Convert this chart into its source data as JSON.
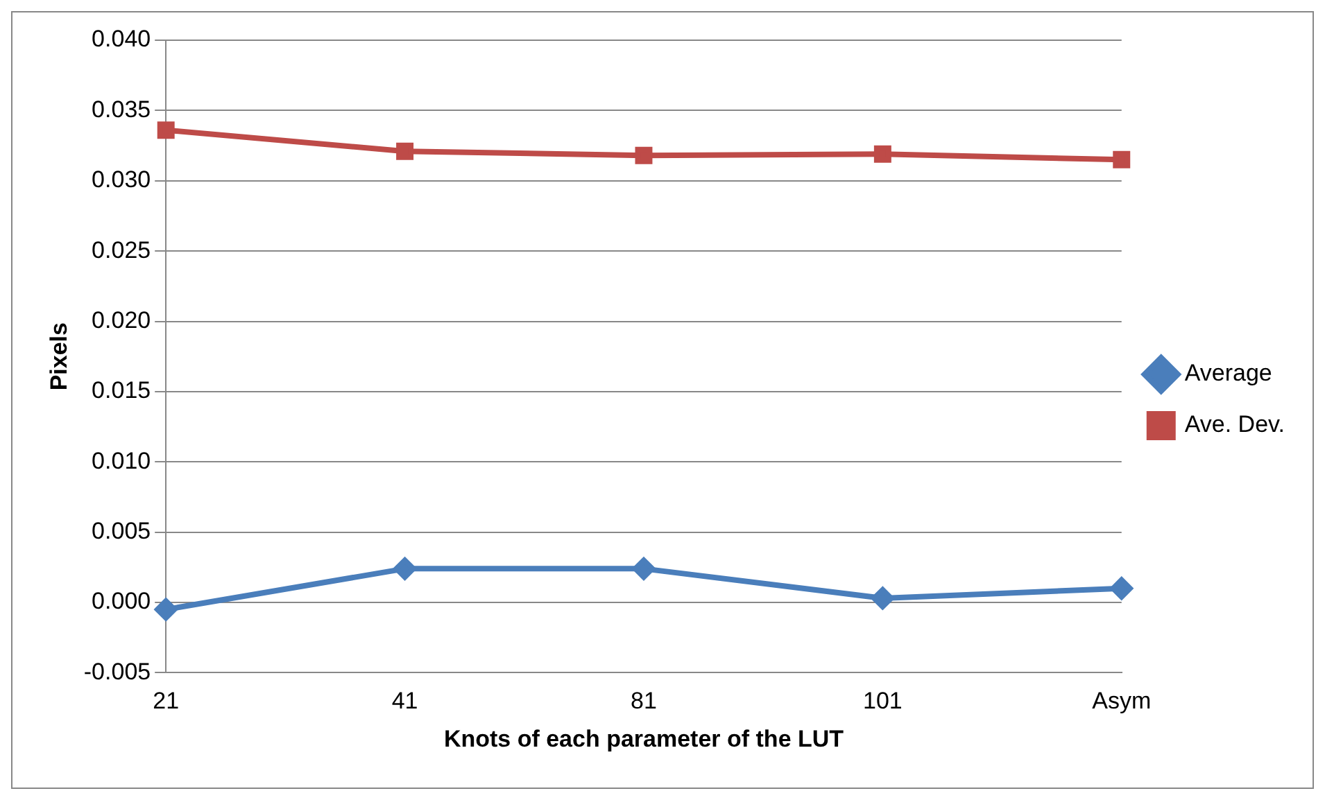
{
  "chart_data": {
    "type": "line",
    "xlabel": "Knots of each parameter of the LUT",
    "ylabel": "Pixels",
    "categories": [
      "21",
      "41",
      "81",
      "101",
      "Asym"
    ],
    "series": [
      {
        "name": "Average",
        "color": "#4a7ebb",
        "marker": "diamond",
        "values": [
          -0.0005,
          0.0024,
          0.0024,
          0.0003,
          0.001
        ]
      },
      {
        "name": "Ave. Dev.",
        "color": "#be4b48",
        "marker": "square",
        "values": [
          0.0336,
          0.0321,
          0.0318,
          0.0319,
          0.0315
        ]
      }
    ],
    "ylim": [
      -0.005,
      0.04
    ],
    "yticks": [
      {
        "value": -0.005,
        "label": "-0.005"
      },
      {
        "value": 0,
        "label": "0.000"
      },
      {
        "value": 0.005,
        "label": "0.005"
      },
      {
        "value": 0.01,
        "label": "0.010"
      },
      {
        "value": 0.015,
        "label": "0.015"
      },
      {
        "value": 0.02,
        "label": "0.020"
      },
      {
        "value": 0.025,
        "label": "0.025"
      },
      {
        "value": 0.03,
        "label": "0.030"
      },
      {
        "value": 0.035,
        "label": "0.035"
      },
      {
        "value": 0.04,
        "label": "0.040"
      }
    ],
    "grid": "y",
    "legend": "right"
  }
}
